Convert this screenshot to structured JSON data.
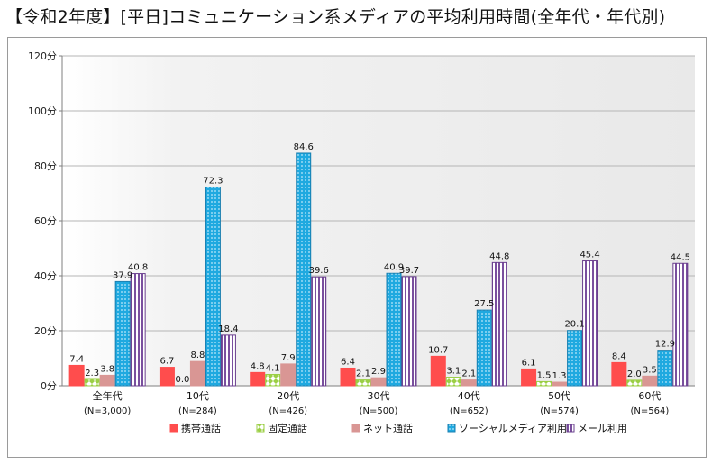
{
  "page": {
    "title": "【令和2年度】[平日]コミュニケーション系メディアの平均利用時間(全年代・年代別)"
  },
  "chart_data": {
    "type": "bar",
    "title": "【令和2年度】[平日]コミュニケーション系メディアの平均利用時間(全年代・年代別)",
    "categories": [
      [
        "全年代",
        "(N=3,000)"
      ],
      [
        "10代",
        "(N=284)"
      ],
      [
        "20代",
        "(N=426)"
      ],
      [
        "30代",
        "(N=500)"
      ],
      [
        "40代",
        "(N=652)"
      ],
      [
        "50代",
        "(N=574)"
      ],
      [
        "60代",
        "(N=564)"
      ]
    ],
    "series": [
      {
        "name": "携帯通話",
        "values": [
          7.4,
          6.7,
          4.8,
          6.4,
          10.7,
          6.1,
          8.4
        ],
        "color": "#ff4d4d"
      },
      {
        "name": "固定通話",
        "values": [
          2.3,
          0.0,
          4.1,
          2.1,
          3.1,
          1.5,
          2.0
        ],
        "color": "#9bcf45"
      },
      {
        "name": "ネット通話",
        "values": [
          3.8,
          8.8,
          7.9,
          2.9,
          2.1,
          1.3,
          3.5
        ],
        "color": "#d99694"
      },
      {
        "name": "ソーシャルメディア利用",
        "values": [
          37.9,
          72.3,
          84.6,
          40.9,
          27.5,
          20.1,
          12.9
        ],
        "color": "#1fa9e0"
      },
      {
        "name": "メール利用",
        "values": [
          40.8,
          18.4,
          39.6,
          39.7,
          44.8,
          45.4,
          44.5
        ],
        "color": "#7a4f9e"
      }
    ],
    "value_labels": [
      [
        "7.4",
        "6.7",
        "4.8",
        "6.4",
        "10.7",
        "6.1",
        "8.4"
      ],
      [
        "2.3",
        "0.0",
        "4.1",
        "2.1",
        "3.1",
        "1.5",
        "2.0"
      ],
      [
        "3.8",
        "8.8",
        "7.9",
        "2.9",
        "2.1",
        "1.3",
        "3.5"
      ],
      [
        "37.9",
        "72.3",
        "84.6",
        "40.9",
        "27.5",
        "20.1",
        "12.9"
      ],
      [
        "40.8",
        "18.4",
        "39.6",
        "39.7",
        "44.8",
        "45.4",
        "44.5"
      ]
    ],
    "y_ticks": [
      "0分",
      "20分",
      "40分",
      "60分",
      "80分",
      "100分",
      "120分"
    ],
    "ylim": [
      0,
      120
    ],
    "grid": true,
    "legend_position": "bottom"
  }
}
